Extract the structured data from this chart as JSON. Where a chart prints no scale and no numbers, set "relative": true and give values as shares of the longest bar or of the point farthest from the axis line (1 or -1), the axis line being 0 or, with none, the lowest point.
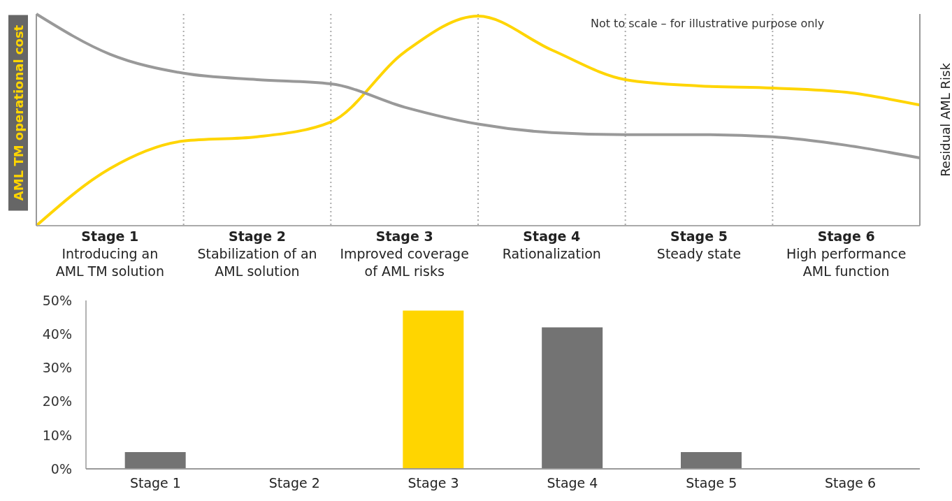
{
  "chart_data": [
    {
      "type": "line",
      "relative": true,
      "grid": "x",
      "categories": [
        null,
        "Stage 1\nIntroducing an\nAML TM solution",
        null,
        "Stage 2\nStabilization of an\nAML solution",
        null,
        "Stage 3\nImproved coverage\nof AML risks",
        null,
        "Stage 4\nRationalization",
        null,
        "Stage 5\nSteady state",
        null,
        "Stage 6\nHigh performance\nAML function",
        null
      ],
      "ylabel": "AML TM operational cost",
      "y2label": "Residual AML Risk",
      "annotations": [
        "Not to scale – for illustrative purpose only"
      ],
      "series": [
        {
          "color": "#ffd500",
          "values": [
            0,
            0.27,
            0.4,
            0.42,
            0.49,
            0.82,
            0.99,
            0.83,
            0.69,
            0.66,
            0.65,
            0.63,
            0.57
          ]
        },
        {
          "color": "#999999",
          "values": [
            1,
            0.81,
            0.72,
            0.69,
            0.67,
            0.56,
            0.48,
            0.44,
            0.43,
            0.43,
            0.42,
            0.38,
            0.32
          ]
        }
      ]
    },
    {
      "type": "bar",
      "categories": [
        "Stage 1",
        "Stage 2",
        "Stage 3",
        "Stage 4",
        "Stage 5",
        "Stage 6"
      ],
      "values": [
        5,
        0,
        47,
        42,
        5,
        0
      ],
      "colors": [
        "#737373",
        "#737373",
        "#ffd500",
        "#737373",
        "#737373",
        "#737373"
      ],
      "ylim": [
        0,
        50
      ],
      "yticks": [
        {
          "value": 0,
          "label": "0%"
        },
        {
          "value": 10,
          "label": "10%"
        },
        {
          "value": 20,
          "label": "20%"
        },
        {
          "value": 30,
          "label": "30%"
        },
        {
          "value": 40,
          "label": "40%"
        },
        {
          "value": 50,
          "label": "50%"
        }
      ]
    }
  ]
}
